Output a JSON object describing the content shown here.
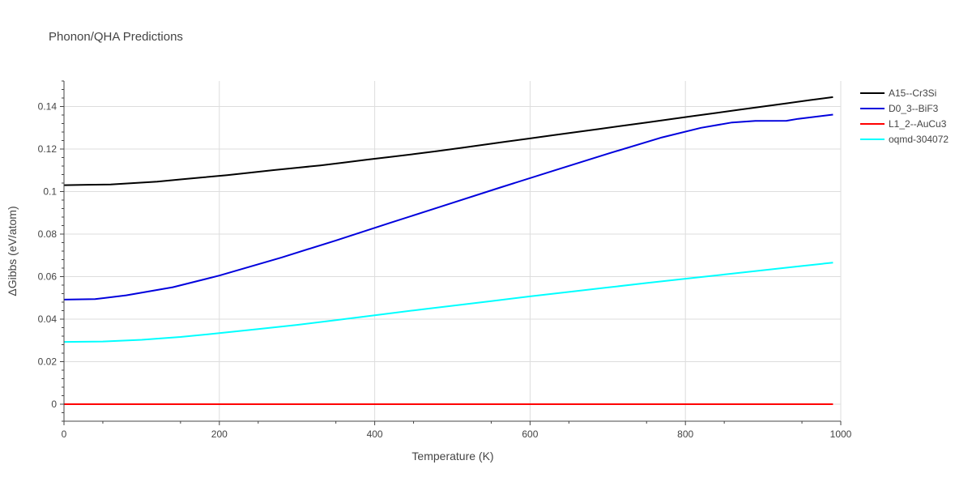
{
  "chart_data": {
    "type": "line",
    "title": "Phonon/QHA Predictions",
    "xlabel": "Temperature (K)",
    "ylabel": "ΔGibbs (eV/atom)",
    "xlim": [
      0,
      1000
    ],
    "ylim": [
      -0.008,
      0.152
    ],
    "x_ticks": [
      0,
      200,
      400,
      600,
      800,
      1000
    ],
    "x_tick_labels": [
      "0",
      "200",
      "400",
      "600",
      "800",
      "1000"
    ],
    "y_ticks": [
      0,
      0.02,
      0.04,
      0.06,
      0.08,
      0.1,
      0.12,
      0.14
    ],
    "y_tick_labels": [
      "0",
      "0.02",
      "0.04",
      "0.06",
      "0.08",
      "0.1",
      "0.12",
      "0.14"
    ],
    "grid": true,
    "legend_position": "top-right",
    "series": [
      {
        "name": "A15--Cr3Si",
        "color": "#000000",
        "x": [
          0,
          30,
          60,
          90,
          120,
          150,
          180,
          210,
          240,
          270,
          300,
          330,
          360,
          390,
          420,
          450,
          480,
          510,
          540,
          570,
          600,
          630,
          660,
          690,
          720,
          750,
          780,
          810,
          840,
          870,
          900,
          930,
          960,
          990
        ],
        "y": [
          0.103,
          0.1032,
          0.1033,
          0.104,
          0.1047,
          0.1057,
          0.1067,
          0.1077,
          0.1089,
          0.1101,
          0.1112,
          0.1123,
          0.1136,
          0.115,
          0.1163,
          0.1176,
          0.119,
          0.1205,
          0.122,
          0.1235,
          0.125,
          0.1265,
          0.128,
          0.1295,
          0.131,
          0.1325,
          0.134,
          0.1355,
          0.137,
          0.1385,
          0.14,
          0.1415,
          0.143,
          0.1444
        ]
      },
      {
        "name": "D0_3--BiF3",
        "color": "#0000dd",
        "x": [
          0,
          40,
          80,
          140,
          200,
          280,
          350,
          420,
          490,
          560,
          630,
          700,
          770,
          820,
          860,
          890,
          930,
          945,
          990
        ],
        "y": [
          0.0492,
          0.0494,
          0.0512,
          0.055,
          0.0605,
          0.069,
          0.077,
          0.0853,
          0.0935,
          0.1017,
          0.1098,
          0.1178,
          0.1255,
          0.13,
          0.1325,
          0.1332,
          0.1333,
          0.1342,
          0.1362
        ]
      },
      {
        "name": "L1_2--AuCu3",
        "color": "#ff0000",
        "x": [
          0,
          990
        ],
        "y": [
          0,
          0
        ]
      },
      {
        "name": "oqmd-304072",
        "color": "#00ffff",
        "x": [
          0,
          50,
          100,
          150,
          200,
          250,
          300,
          350,
          400,
          450,
          500,
          550,
          600,
          650,
          700,
          750,
          800,
          850,
          900,
          950,
          990
        ],
        "y": [
          0.0293,
          0.0295,
          0.0303,
          0.0316,
          0.0334,
          0.0353,
          0.0373,
          0.0395,
          0.0418,
          0.0441,
          0.0463,
          0.0485,
          0.0507,
          0.0528,
          0.0549,
          0.057,
          0.059,
          0.061,
          0.063,
          0.065,
          0.0666
        ]
      }
    ]
  }
}
